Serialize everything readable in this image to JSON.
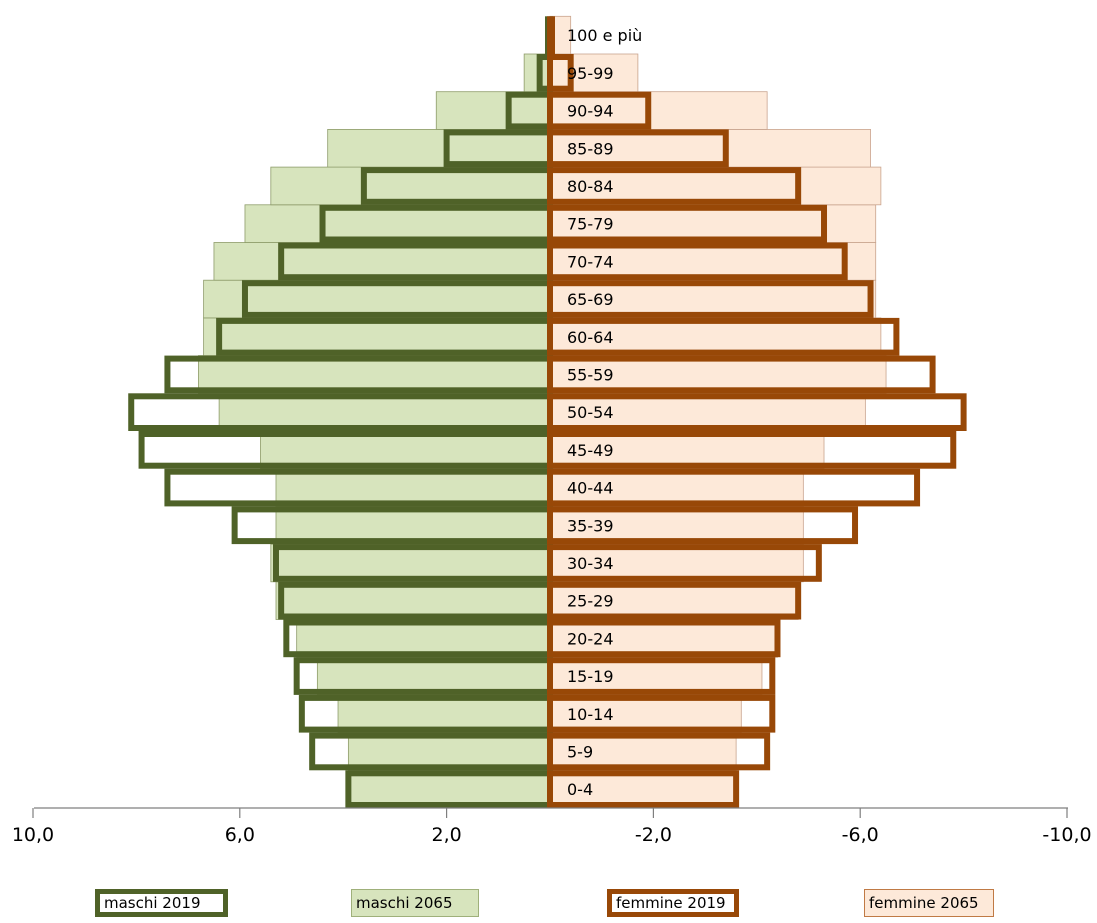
{
  "chart_data": {
    "type": "bar",
    "orientation": "horizontal-pyramid",
    "xlim": [
      10,
      -10
    ],
    "xticks": [
      10,
      6,
      2,
      -2,
      -6,
      -10
    ],
    "x_tick_labels": [
      "10,0",
      "6,0",
      "2,0",
      "-2,0",
      "-6,0",
      "-10,0"
    ],
    "grid": false,
    "legend_position": "bottom",
    "categories": [
      "0-4",
      "5-9",
      "10-14",
      "15-19",
      "20-24",
      "25-29",
      "30-34",
      "35-39",
      "40-44",
      "45-49",
      "50-54",
      "55-59",
      "60-64",
      "65-69",
      "70-74",
      "75-79",
      "80-84",
      "85-89",
      "90-94",
      "95-99",
      "100 e più"
    ],
    "series": [
      {
        "name": "maschi 2019",
        "style": "outline",
        "color": "#4f6228",
        "values": [
          3.9,
          4.6,
          4.8,
          4.9,
          5.1,
          5.2,
          5.3,
          6.1,
          7.4,
          7.9,
          8.1,
          7.4,
          6.4,
          5.9,
          5.2,
          4.4,
          3.6,
          2.0,
          0.8,
          0.2,
          0.0
        ]
      },
      {
        "name": "maschi 2065",
        "style": "fill",
        "color": "#d7e4bd",
        "values": [
          3.9,
          3.9,
          4.1,
          4.5,
          4.9,
          5.3,
          5.4,
          5.3,
          5.3,
          5.6,
          6.4,
          6.8,
          6.7,
          6.7,
          6.5,
          5.9,
          5.4,
          4.3,
          2.2,
          0.5,
          0.0
        ]
      },
      {
        "name": "femmine 2019",
        "style": "outline",
        "color": "#984807",
        "values": [
          3.6,
          4.2,
          4.3,
          4.3,
          4.4,
          4.8,
          5.2,
          5.9,
          7.1,
          7.8,
          8.0,
          7.4,
          6.7,
          6.2,
          5.7,
          5.3,
          4.8,
          3.4,
          1.9,
          0.4,
          0.0
        ]
      },
      {
        "name": "femmine 2065",
        "style": "fill",
        "color": "#fde9d9",
        "values": [
          3.6,
          3.6,
          3.7,
          4.1,
          4.4,
          4.8,
          4.9,
          4.9,
          4.9,
          5.3,
          6.1,
          6.5,
          6.4,
          6.3,
          6.3,
          6.3,
          6.4,
          6.2,
          4.2,
          1.7,
          0.4
        ]
      }
    ],
    "xlabel": "",
    "ylabel": "",
    "title": ""
  }
}
